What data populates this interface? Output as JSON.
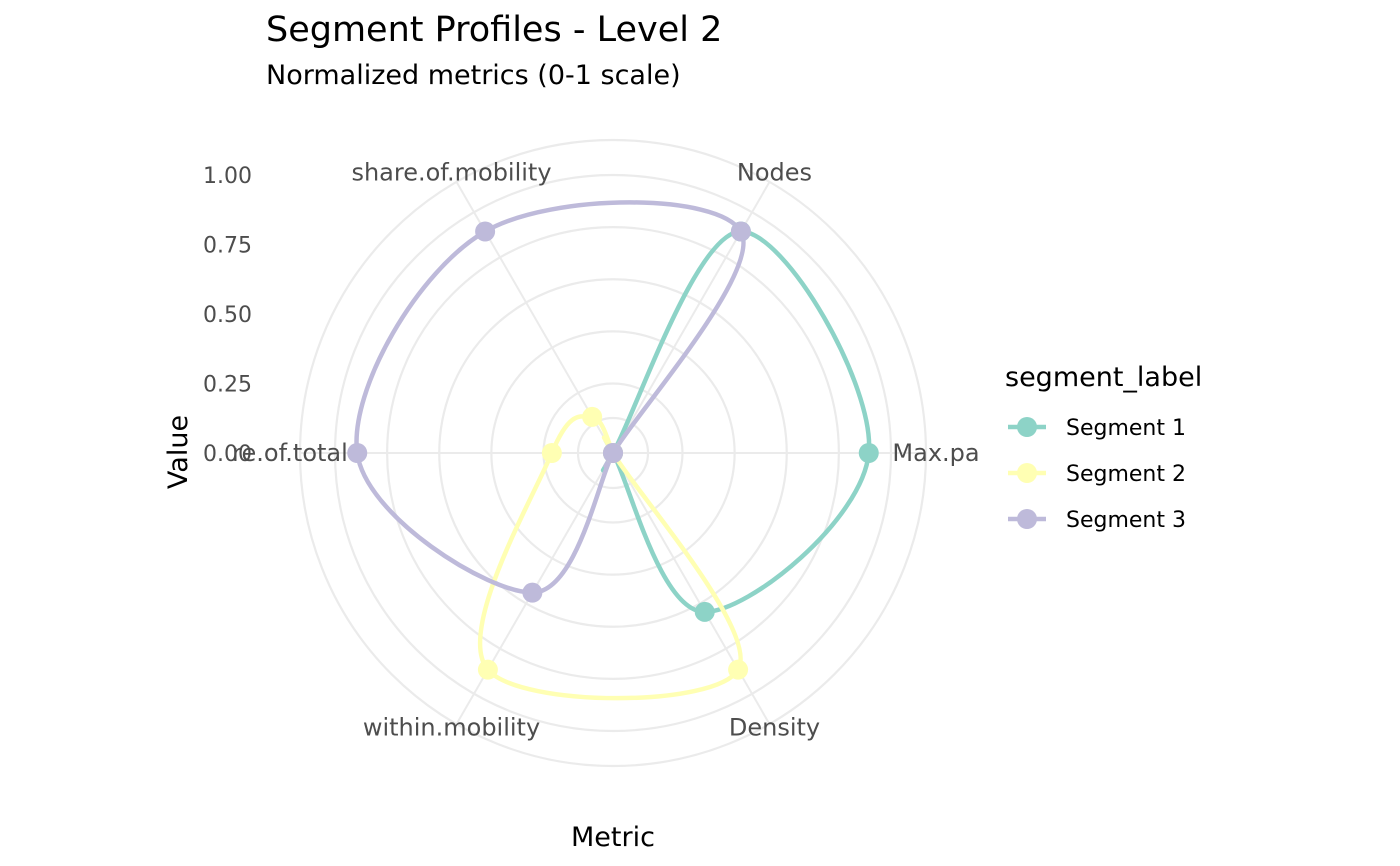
{
  "chart_data": {
    "type": "radar",
    "title": "Segment Profiles - Level 2",
    "subtitle": "Normalized metrics (0-1 scale)",
    "xlabel": "Metric",
    "ylabel": "Value",
    "ylim": [
      0,
      1
    ],
    "y_ticks": [
      "0.00",
      "0.25",
      "0.50",
      "0.75",
      "1.00"
    ],
    "categories": [
      "Max.pa",
      "Nodes",
      "share.of.mobility",
      "re.of.total",
      "within.mobility",
      "Density"
    ],
    "grid": true,
    "legend_title": "segment_label",
    "legend_position": "right",
    "series": [
      {
        "name": "Segment 1",
        "color": "#8dd3c7",
        "values": [
          0.92,
          0.92,
          0.0,
          0.0,
          0.0,
          0.66
        ]
      },
      {
        "name": "Segment 2",
        "color": "#ffffb3",
        "values": [
          0.0,
          0.0,
          0.15,
          0.22,
          0.9,
          0.9
        ]
      },
      {
        "name": "Segment 3",
        "color": "#bebada",
        "values": [
          0.0,
          0.92,
          0.92,
          0.92,
          0.58,
          0.0
        ]
      }
    ]
  }
}
